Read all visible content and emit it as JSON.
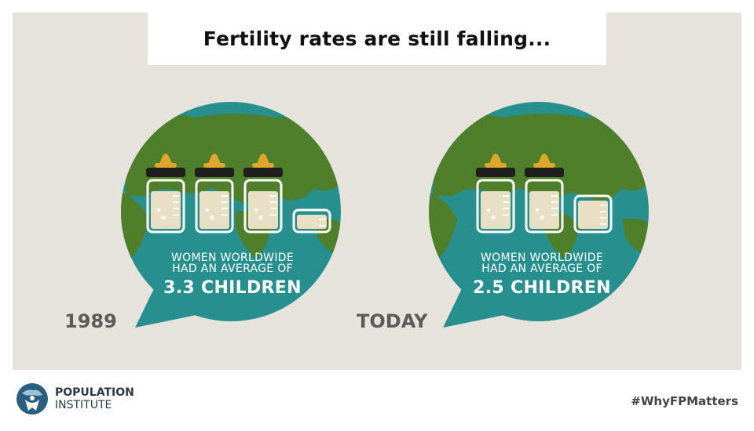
{
  "title": "Fertility rates are still falling...",
  "colors": {
    "ocean": "#27908f",
    "land": "#4f7f2b",
    "bottle_fill": "#e8dfc5",
    "bottle_outline": "#ffffff",
    "cap": "#1f1f1f",
    "nipple": "#e0a62a",
    "background": "#e6e3dc"
  },
  "panels": [
    {
      "year": "1989",
      "caption_line1": "WOMEN WORLDWIDE",
      "caption_line2": "HAD AN AVERAGE OF",
      "caption_value": "3.3 CHILDREN",
      "full_bottles": 3,
      "partial_bottle_fraction": 0.3
    },
    {
      "year": "TODAY",
      "caption_line1": "WOMEN WORLDWIDE",
      "caption_line2": "HAD AN AVERAGE OF",
      "caption_value": "2.5 CHILDREN",
      "full_bottles": 2,
      "partial_bottle_fraction": 0.5
    }
  ],
  "footer": {
    "logo_line1": "POPULATION",
    "logo_line2": "INSTITUTE",
    "hashtag": "#WhyFPMatters"
  }
}
